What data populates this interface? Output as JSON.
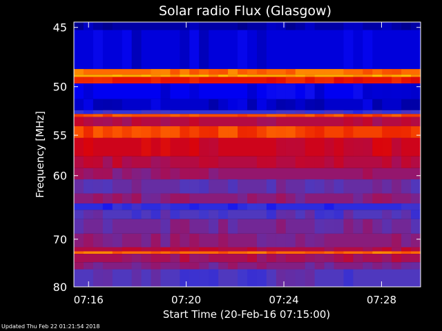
{
  "chart_data": {
    "type": "heatmap",
    "title": "Solar radio Flux (Glasgow)",
    "ylabel": "Frequency [MHz]",
    "xlabel": "Start Time (20-Feb-16 07:15:00)",
    "y_ticks": [
      45,
      50,
      55,
      60,
      70,
      80
    ],
    "x_ticks": [
      "07:16",
      "07:20",
      "07:24",
      "07:28"
    ],
    "x_tick_minutes": [
      1,
      5,
      9,
      13
    ],
    "x_range_minutes": [
      0.4,
      14.6
    ],
    "y_range_mhz": [
      44.6,
      80
    ],
    "y_scale": "reciprocal",
    "colormap": [
      "#000080",
      "#0000ff",
      "#4040d0",
      "#a01060",
      "#e00000",
      "#ff6000",
      "#ffd000"
    ],
    "bands": [
      {
        "f0": 44.6,
        "f1": 45.2,
        "level": 0.05
      },
      {
        "f0": 45.2,
        "f1": 48.4,
        "level": 0.12
      },
      {
        "f0": 48.4,
        "f1": 48.9,
        "level": 0.85
      },
      {
        "f0": 48.9,
        "f1": 49.1,
        "level": 0.95
      },
      {
        "f0": 49.1,
        "f1": 49.7,
        "level": 0.7
      },
      {
        "f0": 49.7,
        "f1": 51.2,
        "level": 0.15
      },
      {
        "f0": 51.2,
        "f1": 52.3,
        "level": 0.1
      },
      {
        "f0": 52.3,
        "f1": 52.7,
        "level": 0.3
      },
      {
        "f0": 52.7,
        "f1": 53.0,
        "level": 0.8
      },
      {
        "f0": 53.0,
        "f1": 54.0,
        "level": 0.55
      },
      {
        "f0": 54.0,
        "f1": 55.3,
        "level": 0.78
      },
      {
        "f0": 55.3,
        "f1": 57.5,
        "level": 0.62
      },
      {
        "f0": 57.5,
        "f1": 59.0,
        "level": 0.55
      },
      {
        "f0": 59.0,
        "f1": 60.5,
        "level": 0.48
      },
      {
        "f0": 60.5,
        "f1": 62.5,
        "level": 0.4
      },
      {
        "f0": 62.5,
        "f1": 64.0,
        "level": 0.46
      },
      {
        "f0": 64.0,
        "f1": 65.0,
        "level": 0.28
      },
      {
        "f0": 65.0,
        "f1": 66.5,
        "level": 0.36
      },
      {
        "f0": 66.5,
        "f1": 69.0,
        "level": 0.42
      },
      {
        "f0": 69.0,
        "f1": 71.5,
        "level": 0.46
      },
      {
        "f0": 71.5,
        "f1": 72.3,
        "level": 0.55
      },
      {
        "f0": 72.3,
        "f1": 72.8,
        "level": 0.85
      },
      {
        "f0": 72.8,
        "f1": 74.5,
        "level": 0.52
      },
      {
        "f0": 74.5,
        "f1": 76.0,
        "level": 0.45
      },
      {
        "f0": 76.0,
        "f1": 80.0,
        "level": 0.36
      }
    ]
  },
  "footer": "Updated Thu Feb 22 01:21:54 2018"
}
